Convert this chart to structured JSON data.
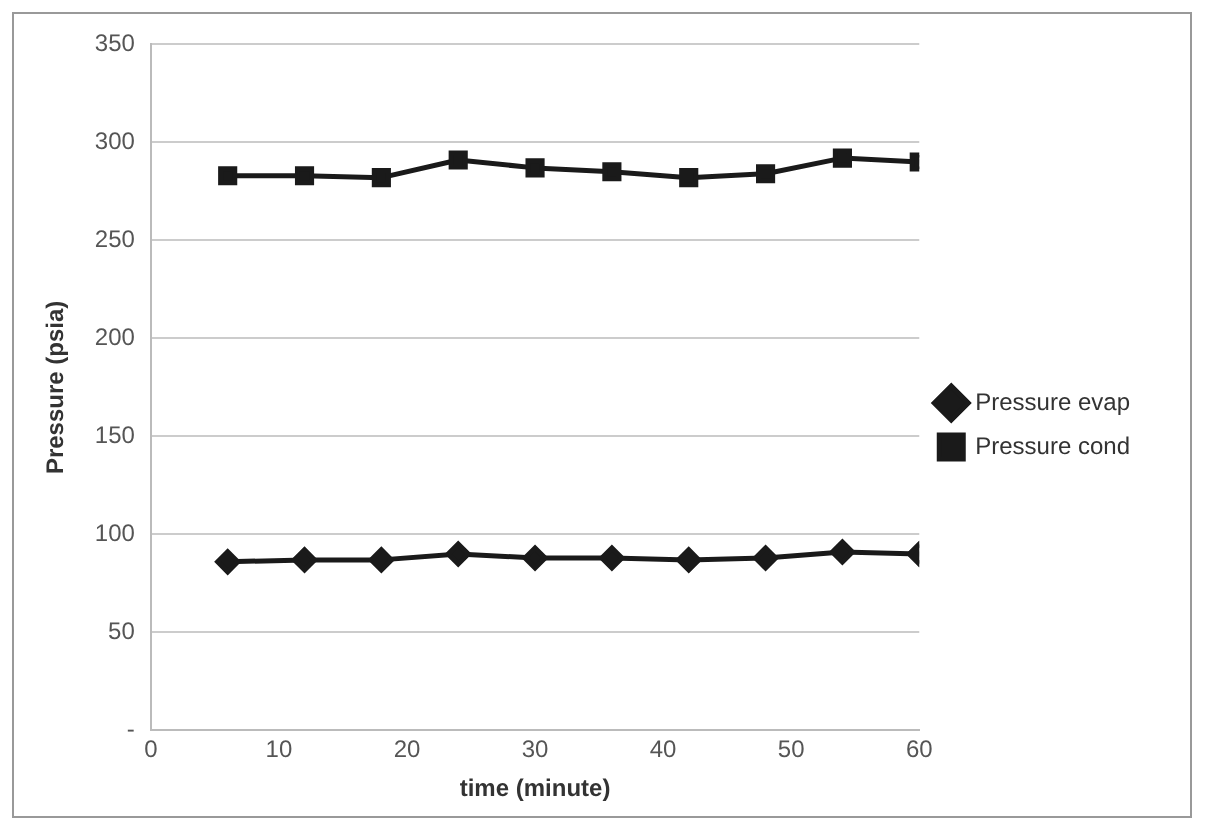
{
  "chart_data": {
    "type": "line",
    "xlabel": "time (minute)",
    "ylabel": "Pressure (psia)",
    "x": [
      6,
      12,
      18,
      24,
      30,
      36,
      42,
      48,
      54,
      60
    ],
    "series": [
      {
        "name": "Pressure evap",
        "color": "#1a1a1a",
        "marker": "diamond",
        "values": [
          86,
          87,
          87,
          90,
          88,
          88,
          87,
          88,
          91,
          90
        ]
      },
      {
        "name": "Pressure cond",
        "color": "#1a1a1a",
        "marker": "square",
        "values": [
          283,
          283,
          282,
          291,
          287,
          285,
          282,
          284,
          292,
          290
        ]
      }
    ],
    "xlim": [
      0,
      60
    ],
    "xticks": [
      0,
      10,
      20,
      30,
      40,
      50,
      60
    ],
    "ylim": [
      0,
      350
    ],
    "yticks": [
      {
        "value": 0,
        "label": "-"
      },
      50,
      100,
      150,
      200,
      250,
      300,
      350
    ],
    "grid": "y",
    "legend": "right"
  }
}
